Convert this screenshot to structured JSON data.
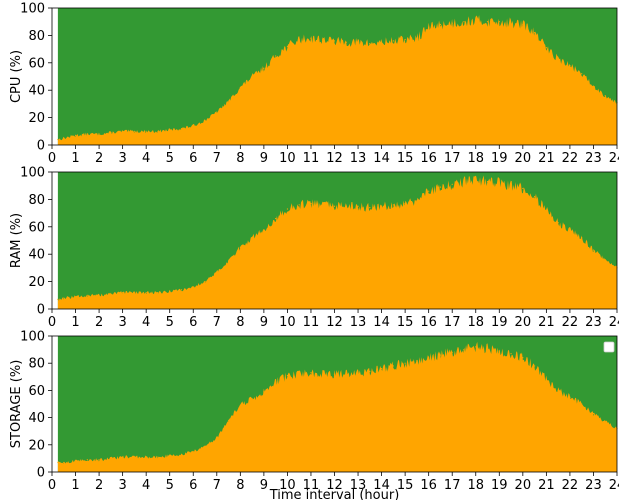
{
  "chart_data": [
    {
      "type": "area",
      "ylabel": "CPU (%)",
      "xlabel": "",
      "xlim": [
        0,
        24
      ],
      "ylim": [
        0,
        100
      ],
      "x_ticks": [
        "0",
        "1",
        "2",
        "3",
        "4",
        "5",
        "6",
        "7",
        "8",
        "9",
        "10",
        "11",
        "12",
        "13",
        "14",
        "15",
        "16",
        "17",
        "18",
        "19",
        "20",
        "21",
        "22",
        "23",
        "24"
      ],
      "y_ticks": [
        "0",
        "20",
        "40",
        "60",
        "80",
        "100"
      ],
      "data_range": [
        0.25,
        24
      ],
      "series": [
        {
          "color": "#ffa500",
          "x": [
            0.25,
            0.5,
            1,
            1.5,
            2,
            2.5,
            3,
            3.5,
            4,
            4.5,
            5,
            5.5,
            6,
            6.5,
            7,
            7.5,
            8,
            8.5,
            9,
            9.5,
            10,
            10.5,
            11,
            11.5,
            12,
            12.5,
            13,
            13.5,
            14,
            14.5,
            15,
            15.5,
            16,
            16.5,
            17,
            17.5,
            18,
            18.5,
            19,
            19.5,
            20,
            20.5,
            21,
            21.5,
            22,
            22.5,
            23,
            23.5,
            24
          ],
          "values": [
            4,
            5,
            7,
            8,
            8,
            9,
            10,
            10,
            10,
            10,
            11,
            12,
            14,
            18,
            24,
            32,
            42,
            50,
            56,
            65,
            72,
            77,
            78,
            77,
            76,
            75,
            75,
            74,
            75,
            76,
            77,
            78,
            86,
            88,
            89,
            90,
            91,
            90,
            90,
            89,
            88,
            82,
            71,
            63,
            58,
            52,
            43,
            36,
            31
          ]
        },
        {
          "color": "#339933",
          "x": [
            0.25,
            24
          ],
          "values": [
            100,
            100
          ]
        }
      ]
    },
    {
      "type": "area",
      "ylabel": "RAM (%)",
      "xlabel": "",
      "xlim": [
        0,
        24
      ],
      "ylim": [
        0,
        100
      ],
      "x_ticks": [
        "0",
        "1",
        "2",
        "3",
        "4",
        "5",
        "6",
        "7",
        "8",
        "9",
        "10",
        "11",
        "12",
        "13",
        "14",
        "15",
        "16",
        "17",
        "18",
        "19",
        "20",
        "21",
        "22",
        "23",
        "24"
      ],
      "y_ticks": [
        "0",
        "20",
        "40",
        "60",
        "80",
        "100"
      ],
      "data_range": [
        0.25,
        24
      ],
      "series": [
        {
          "color": "#ffa500",
          "x": [
            0.25,
            0.5,
            1,
            1.5,
            2,
            2.5,
            3,
            3.5,
            4,
            4.5,
            5,
            5.5,
            6,
            6.5,
            7,
            7.5,
            8,
            8.5,
            9,
            9.5,
            10,
            10.5,
            11,
            11.5,
            12,
            12.5,
            13,
            13.5,
            14,
            14.5,
            15,
            15.5,
            16,
            16.5,
            17,
            17.5,
            18,
            18.5,
            19,
            19.5,
            20,
            20.5,
            21,
            21.5,
            22,
            22.5,
            23,
            23.5,
            24
          ],
          "values": [
            7,
            8,
            9,
            10,
            10,
            11,
            12,
            12,
            12,
            12,
            13,
            14,
            16,
            20,
            27,
            35,
            45,
            52,
            58,
            66,
            73,
            76,
            77,
            76,
            75,
            75,
            75,
            74,
            75,
            76,
            77,
            79,
            86,
            89,
            91,
            93,
            94,
            93,
            92,
            90,
            88,
            82,
            72,
            63,
            58,
            52,
            43,
            36,
            30
          ]
        },
        {
          "color": "#339933",
          "x": [
            0.25,
            24
          ],
          "values": [
            100,
            100
          ]
        }
      ]
    },
    {
      "type": "area",
      "ylabel": "STORAGE (%)",
      "xlabel": "Time interval (hour)",
      "xlim": [
        0,
        24
      ],
      "ylim": [
        0,
        100
      ],
      "x_ticks": [
        "0",
        "1",
        "2",
        "3",
        "4",
        "5",
        "6",
        "7",
        "8",
        "9",
        "10",
        "11",
        "12",
        "13",
        "14",
        "15",
        "16",
        "17",
        "18",
        "19",
        "20",
        "21",
        "22",
        "23",
        "24"
      ],
      "y_ticks": [
        "0",
        "20",
        "40",
        "60",
        "80",
        "100"
      ],
      "data_range": [
        0.25,
        24
      ],
      "legend": "top-right",
      "series": [
        {
          "color": "#ffa500",
          "x": [
            0.25,
            0.5,
            1,
            1.5,
            2,
            2.5,
            3,
            3.5,
            4,
            4.5,
            5,
            5.5,
            6,
            6.5,
            7,
            7.5,
            8,
            8.5,
            9,
            9.5,
            10,
            10.5,
            11,
            11.5,
            12,
            12.5,
            13,
            13.5,
            14,
            14.5,
            15,
            15.5,
            16,
            16.5,
            17,
            17.5,
            18,
            18.5,
            19,
            19.5,
            20,
            20.5,
            21,
            21.5,
            22,
            22.5,
            23,
            23.5,
            24
          ],
          "values": [
            7,
            7,
            8,
            9,
            9,
            10,
            11,
            11,
            11,
            11,
            12,
            13,
            15,
            19,
            25,
            38,
            49,
            54,
            59,
            66,
            71,
            72,
            73,
            72,
            72,
            72,
            73,
            74,
            76,
            78,
            80,
            82,
            84,
            86,
            88,
            90,
            92,
            91,
            89,
            87,
            84,
            78,
            68,
            60,
            55,
            50,
            43,
            37,
            32
          ]
        },
        {
          "color": "#339933",
          "x": [
            0.25,
            24
          ],
          "values": [
            100,
            100
          ]
        }
      ]
    }
  ]
}
